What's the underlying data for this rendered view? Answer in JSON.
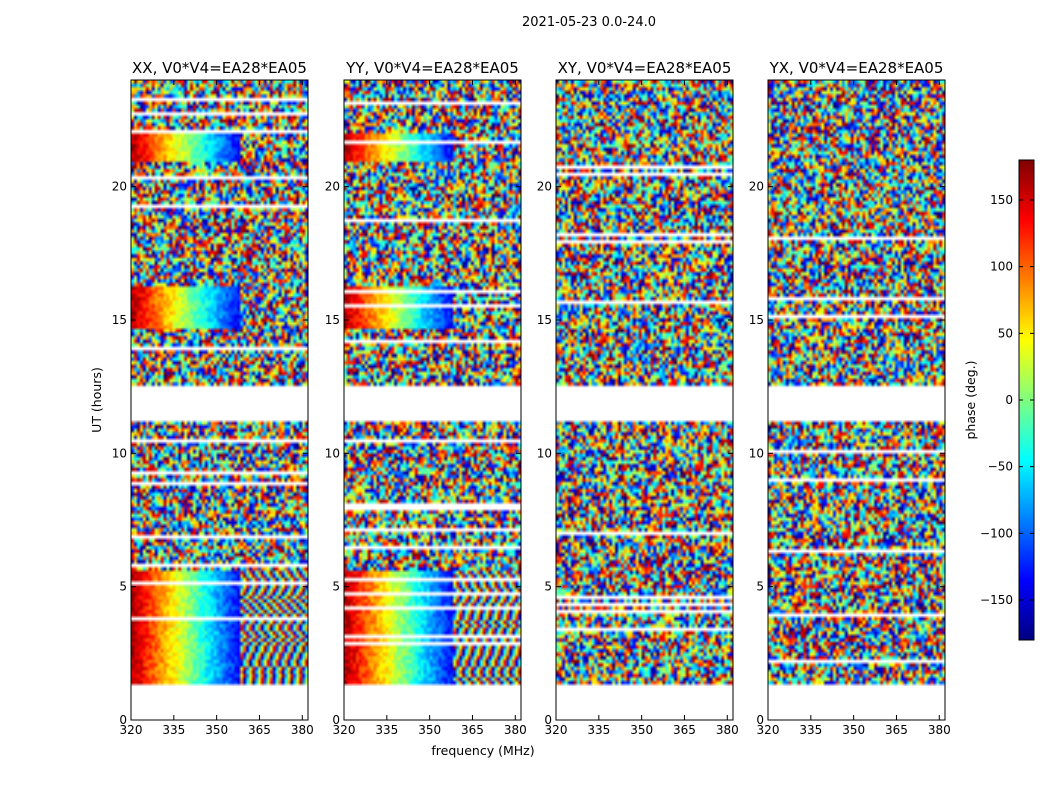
{
  "chart_data": {
    "type": "heatmap",
    "suptitle": "2021-05-23 0.0-24.0",
    "xlabel": "frequency (MHz)",
    "ylabel": "UT (hours)",
    "xlim": [
      320,
      382
    ],
    "ylim": [
      0,
      24
    ],
    "xticks": [
      "320",
      "335",
      "350",
      "365",
      "380"
    ],
    "xtick_values": [
      320,
      335,
      350,
      365,
      380
    ],
    "yticks": [
      "0",
      "5",
      "10",
      "15",
      "20"
    ],
    "ytick_values": [
      0,
      5,
      10,
      15,
      20
    ],
    "panels": [
      {
        "title": "XX, V0*V4=EA28*EA05",
        "coherent": true
      },
      {
        "title": "YY, V0*V4=EA28*EA05",
        "coherent": true
      },
      {
        "title": "XY, V0*V4=EA28*EA05",
        "coherent": false
      },
      {
        "title": "YX, V0*V4=EA28*EA05",
        "coherent": false
      }
    ],
    "data_gaps_hours": [
      [
        0,
        1.3
      ],
      [
        11.2,
        12.6
      ]
    ],
    "colorbar": {
      "label": "phase (deg.)",
      "range": [
        -180,
        180
      ],
      "ticks": [
        "150",
        "100",
        "50",
        "0",
        "−50",
        "−100",
        "−150"
      ],
      "tick_values": [
        150,
        100,
        50,
        0,
        -50,
        -100,
        -150
      ],
      "colormap": "jet"
    }
  }
}
